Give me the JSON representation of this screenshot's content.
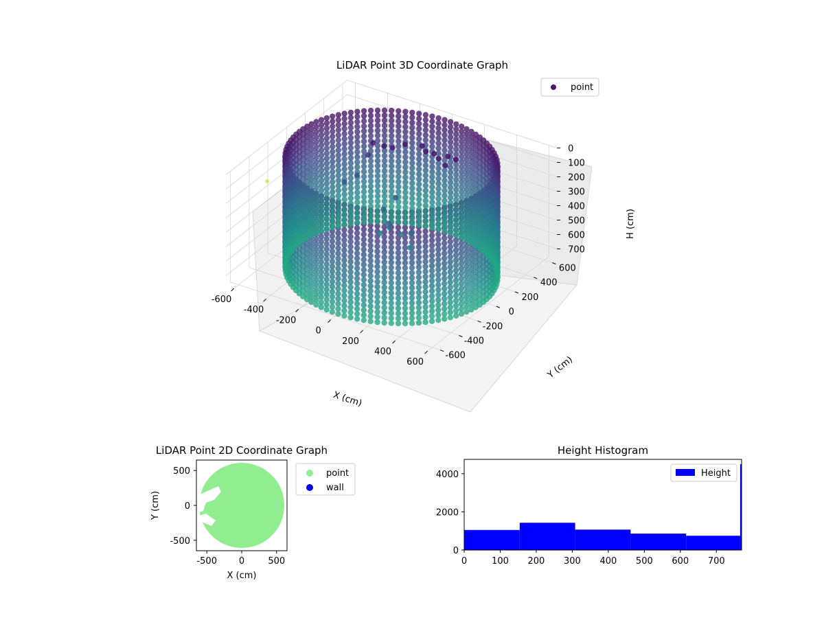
{
  "chart_data": [
    {
      "type": "scatter",
      "projection": "3d",
      "title": "LiDAR Point 3D Coordinate Graph",
      "xlabel": "X (cm)",
      "ylabel": "Y (cm)",
      "zlabel": "H (cm)",
      "xlim": [
        -650,
        650
      ],
      "ylim": [
        -650,
        650
      ],
      "zlim": [
        0,
        770
      ],
      "z_inverted": true,
      "xticks": [
        -600,
        -400,
        -200,
        0,
        200,
        400,
        600
      ],
      "yticks": [
        -600,
        -400,
        -200,
        0,
        200,
        400,
        600
      ],
      "zticks": [
        0,
        100,
        200,
        300,
        400,
        500,
        600,
        700
      ],
      "legend": {
        "location": "top-right",
        "entries": [
          {
            "label": "point",
            "color": "#46176a"
          }
        ]
      },
      "colormap": "viridis",
      "series": [
        {
          "name": "point",
          "shape": "cylindrical wall of points, plus interior clusters",
          "wall_radius": 570,
          "wall_height_range": [
            0,
            770
          ],
          "interior_points": [
            {
              "x": -200,
              "y": 150,
              "h": 20
            },
            {
              "x": -150,
              "y": 180,
              "h": 40
            },
            {
              "x": -120,
              "y": 220,
              "h": 60
            },
            {
              "x": -60,
              "y": 250,
              "h": 30
            },
            {
              "x": 40,
              "y": 260,
              "h": 10
            },
            {
              "x": 80,
              "y": 230,
              "h": 20
            },
            {
              "x": 120,
              "y": 250,
              "h": 30
            },
            {
              "x": 160,
              "y": 230,
              "h": 40
            },
            {
              "x": 200,
              "y": 260,
              "h": 25
            },
            {
              "x": 260,
              "y": 240,
              "h": 15
            },
            {
              "x": 220,
              "y": 200,
              "h": 50
            },
            {
              "x": -260,
              "y": 200,
              "h": 150
            },
            {
              "x": -300,
              "y": 150,
              "h": 280
            },
            {
              "x": -350,
              "y": 100,
              "h": 320
            },
            {
              "x": -50,
              "y": 0,
              "h": 350
            },
            {
              "x": 0,
              "y": -20,
              "h": 450
            },
            {
              "x": 50,
              "y": 20,
              "h": 500
            },
            {
              "x": -100,
              "y": 50,
              "h": 560
            },
            {
              "x": 80,
              "y": 60,
              "h": 600
            },
            {
              "x": 150,
              "y": -50,
              "h": 420
            },
            {
              "x": -20,
              "y": 80,
              "h": 300
            },
            {
              "x": 30,
              "y": -80,
              "h": 380
            }
          ]
        }
      ]
    },
    {
      "type": "scatter",
      "title": "LiDAR Point 2D Coordinate Graph",
      "xlabel": "X (cm)",
      "ylabel": "Y (cm)",
      "xlim": [
        -650,
        650
      ],
      "ylim": [
        -650,
        650
      ],
      "xticks": [
        -500,
        0,
        500
      ],
      "yticks": [
        500,
        0,
        -500
      ],
      "legend": {
        "location": "outside-right",
        "entries": [
          {
            "label": "point",
            "color": "#90ee90"
          },
          {
            "label": "wall",
            "color": "#0000ff"
          }
        ]
      },
      "series": [
        {
          "name": "point",
          "color": "#90ee90",
          "shape": "filled disc of radius 600 with gaps near left edge"
        },
        {
          "name": "wall",
          "color": "#0000ff",
          "values": []
        }
      ]
    },
    {
      "type": "bar",
      "subtype": "histogram",
      "title": "Height Histogram",
      "xlim": [
        0,
        770
      ],
      "ylim": [
        0,
        4750
      ],
      "xticks": [
        0,
        100,
        200,
        300,
        400,
        500,
        600,
        700
      ],
      "yticks": [
        0,
        2000,
        4000
      ],
      "legend": {
        "location": "top-right",
        "entries": [
          {
            "label": "Height",
            "color": "#0000ff"
          }
        ]
      },
      "series": [
        {
          "name": "Height",
          "color": "#0000ff",
          "bins": [
            {
              "start": 0,
              "end": 154,
              "count": 1050
            },
            {
              "start": 154,
              "end": 308,
              "count": 1430
            },
            {
              "start": 308,
              "end": 462,
              "count": 1070
            },
            {
              "start": 462,
              "end": 616,
              "count": 860
            },
            {
              "start": 616,
              "end": 766,
              "count": 750
            },
            {
              "start": 766,
              "end": 770,
              "count": 4500
            }
          ]
        }
      ]
    }
  ]
}
